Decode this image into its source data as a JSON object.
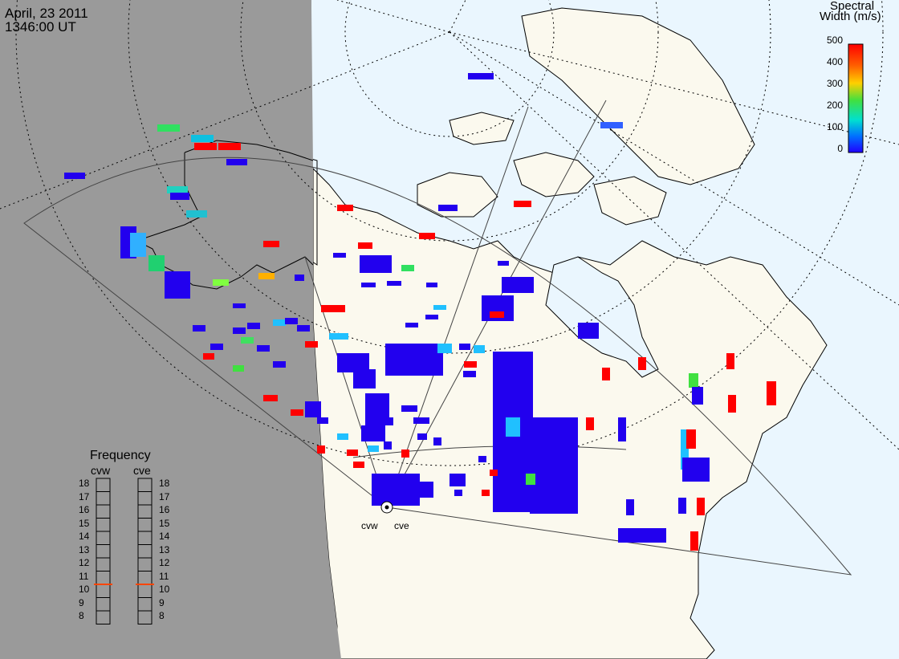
{
  "header": {
    "date": "April, 23 2011",
    "time": "1346:00 UT"
  },
  "colorbar": {
    "title_line1": "Spectral",
    "title_line2": "Width (m/s)",
    "ticks": [
      "500",
      "400",
      "300",
      "200",
      "100",
      "0"
    ],
    "colors": [
      "#ff0000",
      "#ff8000",
      "#ffd000",
      "#40e040",
      "#00e0e0",
      "#0060ff",
      "#2000ff"
    ]
  },
  "frequency": {
    "title": "Frequency",
    "radars": [
      {
        "name": "cvw",
        "selected": "11"
      },
      {
        "name": "cve",
        "selected": "11"
      }
    ],
    "scale": [
      "18",
      "17",
      "16",
      "15",
      "14",
      "13",
      "12",
      "11",
      "10",
      "9",
      "8"
    ]
  },
  "radars": [
    {
      "label": "cvw"
    },
    {
      "label": "cve"
    }
  ],
  "colors": {
    "night": "#9a9a9a",
    "ocean": "#eaf6fe",
    "land": "#fbf9ee",
    "marker_blue": "#2200ee",
    "marker_red": "#ff0000",
    "freq_marker": "#ff4500"
  }
}
